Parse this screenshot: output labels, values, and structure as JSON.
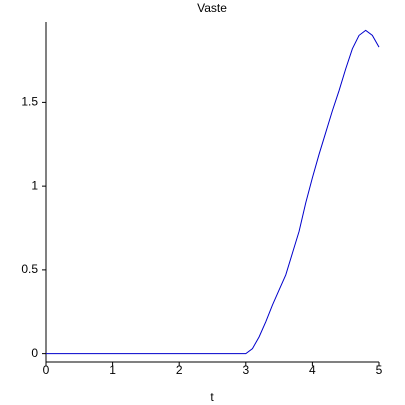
{
  "chart_data": {
    "type": "line",
    "title": "Vaste",
    "x_label": "t",
    "x": [
      0,
      1,
      2,
      3,
      3.1,
      3.2,
      3.3,
      3.4,
      3.5,
      3.6,
      3.7,
      3.8,
      3.9,
      4.0,
      4.1,
      4.2,
      4.3,
      4.4,
      4.5,
      4.6,
      4.7,
      4.8,
      4.9,
      5.0
    ],
    "series": [
      {
        "color": "#0000cc",
        "values": [
          0,
          0,
          0,
          0,
          0.03,
          0.1,
          0.19,
          0.29,
          0.38,
          0.47,
          0.6,
          0.73,
          0.9,
          1.05,
          1.19,
          1.32,
          1.45,
          1.57,
          1.7,
          1.82,
          1.9,
          1.93,
          1.9,
          1.83
        ]
      }
    ],
    "xlim": [
      0,
      5
    ],
    "ylim": [
      -0.05,
      1.98
    ],
    "xticks": [
      0,
      1,
      2,
      3,
      4,
      5
    ],
    "yticks": [
      0,
      0.5,
      1,
      1.5
    ],
    "grid": false
  }
}
